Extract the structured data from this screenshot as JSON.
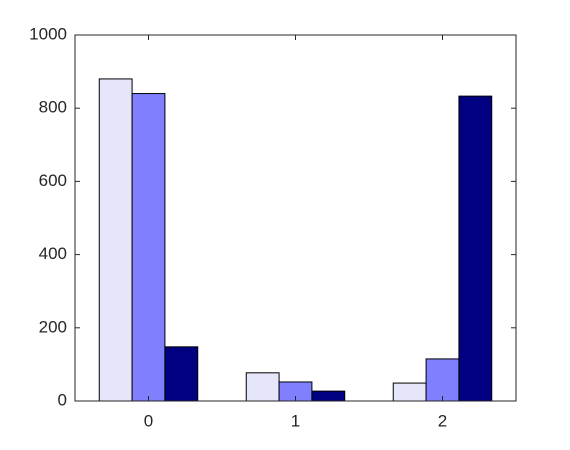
{
  "chart_data": {
    "type": "bar",
    "x": [
      0,
      1,
      2
    ],
    "series": [
      {
        "color": "#e6e6fa",
        "values": [
          880,
          77,
          49
        ]
      },
      {
        "color": "#8080ff",
        "values": [
          840,
          52,
          115
        ]
      },
      {
        "color": "#000080",
        "values": [
          148,
          27,
          833
        ]
      }
    ],
    "xlim": [
      -0.5,
      2.5
    ],
    "xticks": [
      0,
      1,
      2
    ],
    "ylim": [
      0,
      1000
    ],
    "yticks": [
      0,
      200,
      400,
      600,
      800,
      1000
    ],
    "grid": false
  }
}
